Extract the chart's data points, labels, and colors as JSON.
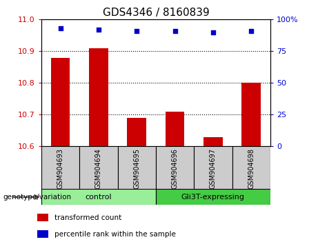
{
  "title": "GDS4346 / 8160839",
  "samples": [
    "GSM904693",
    "GSM904694",
    "GSM904695",
    "GSM904696",
    "GSM904697",
    "GSM904698"
  ],
  "transformed_counts": [
    10.88,
    10.91,
    10.69,
    10.71,
    10.63,
    10.8
  ],
  "percentile_ranks": [
    93,
    92,
    91,
    91,
    90,
    91
  ],
  "ylim_left": [
    10.6,
    11.0
  ],
  "ylim_right": [
    0,
    100
  ],
  "yticks_left": [
    10.6,
    10.7,
    10.8,
    10.9,
    11.0
  ],
  "yticks_right": [
    0,
    25,
    50,
    75,
    100
  ],
  "bar_color": "#cc0000",
  "dot_color": "#0000cc",
  "groups": [
    {
      "label": "control",
      "samples": [
        0,
        1,
        2
      ],
      "color": "#99ee99"
    },
    {
      "label": "Gli3T-expressing",
      "samples": [
        3,
        4,
        5
      ],
      "color": "#44cc44"
    }
  ],
  "group_label_prefix": "genotype/variation",
  "legend_items": [
    {
      "label": "transformed count",
      "color": "#cc0000"
    },
    {
      "label": "percentile rank within the sample",
      "color": "#0000cc"
    }
  ],
  "plot_bg": "#ffffff",
  "tick_label_color_left": "#cc0000",
  "tick_label_color_right": "#0000cc",
  "grid_color": "#000000",
  "sample_bg": "#cccccc"
}
